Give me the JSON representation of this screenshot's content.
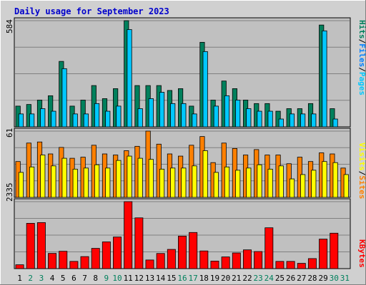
{
  "title": "Daily usage for September 2023",
  "colors": {
    "title": "#0000cc",
    "background": "#c0c0c0",
    "pages": "#00805c",
    "files": "#00c8ff",
    "hits": "#00805c",
    "sites": "#ff8000",
    "visits": "#ffff00",
    "kbytes": "#ff0000",
    "weekend_day": "#00805c",
    "weekday": "#000000"
  },
  "right_labels": {
    "pages": "Pages",
    "files": "Files",
    "hits": "Hits",
    "sites": "Sites",
    "visits": "Visits",
    "kbytes": "KBytes",
    "sep": "/"
  },
  "chart_data": [
    {
      "type": "bar",
      "panel": "hits",
      "y_max_label": "584",
      "ylim": [
        0,
        584
      ],
      "categories": [
        "1",
        "2",
        "3",
        "4",
        "5",
        "6",
        "7",
        "8",
        "9",
        "10",
        "11",
        "12",
        "13",
        "14",
        "15",
        "16",
        "17",
        "18",
        "19",
        "20",
        "21",
        "22",
        "23",
        "24",
        "25",
        "26",
        "27",
        "28",
        "29",
        "30",
        "31"
      ],
      "weekend_days": [
        "2",
        "3",
        "9",
        "10",
        "16",
        "17",
        "23",
        "24",
        "30",
        "31"
      ],
      "series": [
        {
          "name": "Hits",
          "color": "#00805c",
          "values": [
            114,
            123,
            147,
            171,
            360,
            114,
            147,
            227,
            155,
            210,
            584,
            227,
            227,
            227,
            200,
            210,
            114,
            465,
            147,
            252,
            210,
            147,
            128,
            128,
            86,
            100,
            100,
            128,
            560,
            100,
            0
          ]
        },
        {
          "name": "Files",
          "color": "#00c8ff",
          "values": [
            71,
            71,
            100,
            86,
            320,
            71,
            71,
            128,
            86,
            114,
            535,
            100,
            155,
            190,
            128,
            128,
            71,
            414,
            114,
            171,
            147,
            100,
            86,
            86,
            43,
            71,
            71,
            71,
            528,
            43,
            0
          ]
        }
      ]
    },
    {
      "type": "bar",
      "panel": "visits",
      "y_max_label": "61",
      "ylim": [
        0,
        61
      ],
      "categories": [
        "1",
        "2",
        "3",
        "4",
        "5",
        "6",
        "7",
        "8",
        "9",
        "10",
        "11",
        "12",
        "13",
        "14",
        "15",
        "16",
        "17",
        "18",
        "19",
        "20",
        "21",
        "22",
        "23",
        "24",
        "25",
        "26",
        "27",
        "28",
        "29",
        "30",
        "31"
      ],
      "series": [
        {
          "name": "Sites",
          "color": "#ff8000",
          "values": [
            33,
            50,
            51,
            40,
            46,
            36,
            37,
            48,
            40,
            39,
            43,
            47,
            61,
            49,
            40,
            38,
            48,
            56,
            32,
            50,
            45,
            39,
            44,
            39,
            39,
            31,
            37,
            33,
            41,
            40,
            27
          ]
        },
        {
          "name": "Visits",
          "color": "#ffff00",
          "values": [
            23,
            28,
            39,
            29,
            36,
            26,
            27,
            30,
            27,
            34,
            38,
            36,
            35,
            26,
            27,
            27,
            29,
            43,
            23,
            28,
            25,
            27,
            30,
            26,
            29,
            17,
            21,
            25,
            33,
            32,
            21
          ]
        }
      ]
    },
    {
      "type": "bar",
      "panel": "kbytes",
      "y_max_label": "2335",
      "ylim": [
        0,
        2335
      ],
      "categories": [
        "1",
        "2",
        "3",
        "4",
        "5",
        "6",
        "7",
        "8",
        "9",
        "10",
        "11",
        "12",
        "13",
        "14",
        "15",
        "16",
        "17",
        "18",
        "19",
        "20",
        "21",
        "22",
        "23",
        "24",
        "25",
        "26",
        "27",
        "28",
        "29",
        "30",
        "31"
      ],
      "series": [
        {
          "name": "KBytes",
          "color": "#ff0000",
          "values": [
            134,
            1579,
            1605,
            531,
            605,
            252,
            419,
            706,
            932,
            1102,
            2335,
            1770,
            301,
            528,
            670,
            1134,
            1260,
            616,
            262,
            408,
            546,
            654,
            596,
            1424,
            252,
            252,
            184,
            350,
            1029,
            1235,
            0
          ]
        }
      ]
    }
  ]
}
